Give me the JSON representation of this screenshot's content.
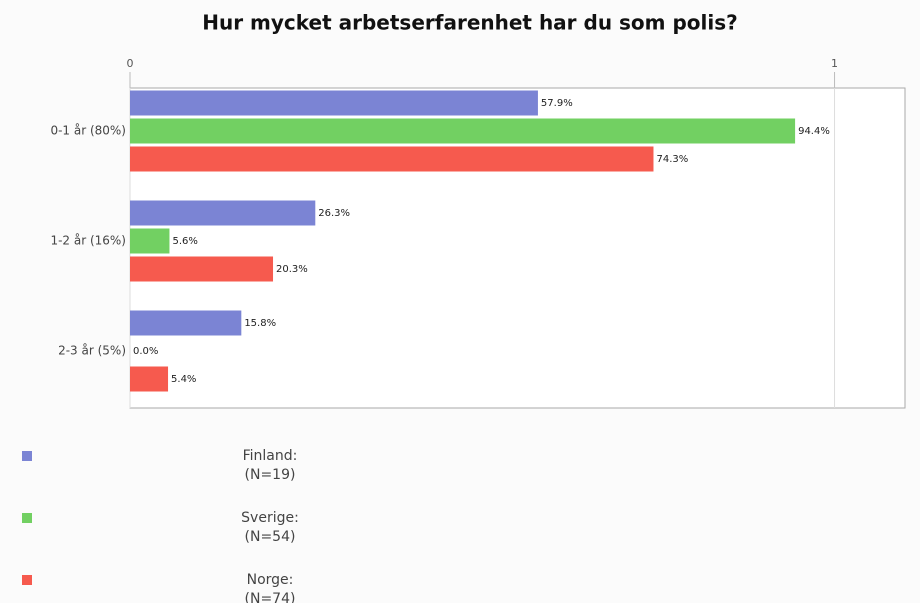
{
  "chart_data": {
    "type": "bar",
    "orientation": "horizontal",
    "title": "Hur mycket arbetserfarenhet har du som polis?",
    "categories": [
      "0-1 år (80%)",
      "1-2 år (16%)",
      "2-3 år (5%)"
    ],
    "series": [
      {
        "name": "Finland:",
        "n_label": "(N=19)",
        "color": "#7b84d4",
        "values": [
          0.579,
          0.263,
          0.158
        ],
        "value_labels": [
          "57.9%",
          "26.3%",
          "15.8%"
        ]
      },
      {
        "name": "Sverige:",
        "n_label": "(N=54)",
        "color": "#72d062",
        "values": [
          0.944,
          0.056,
          0.0
        ],
        "value_labels": [
          "94.4%",
          "5.6%",
          "0.0%"
        ]
      },
      {
        "name": "Norge:",
        "n_label": "(N=74)",
        "color": "#f65a4e",
        "values": [
          0.743,
          0.203,
          0.054
        ],
        "value_labels": [
          "74.3%",
          "20.3%",
          "5.4%"
        ]
      }
    ],
    "xlim": [
      0,
      1.1
    ],
    "xticks": [
      0,
      1
    ],
    "grid": true
  }
}
